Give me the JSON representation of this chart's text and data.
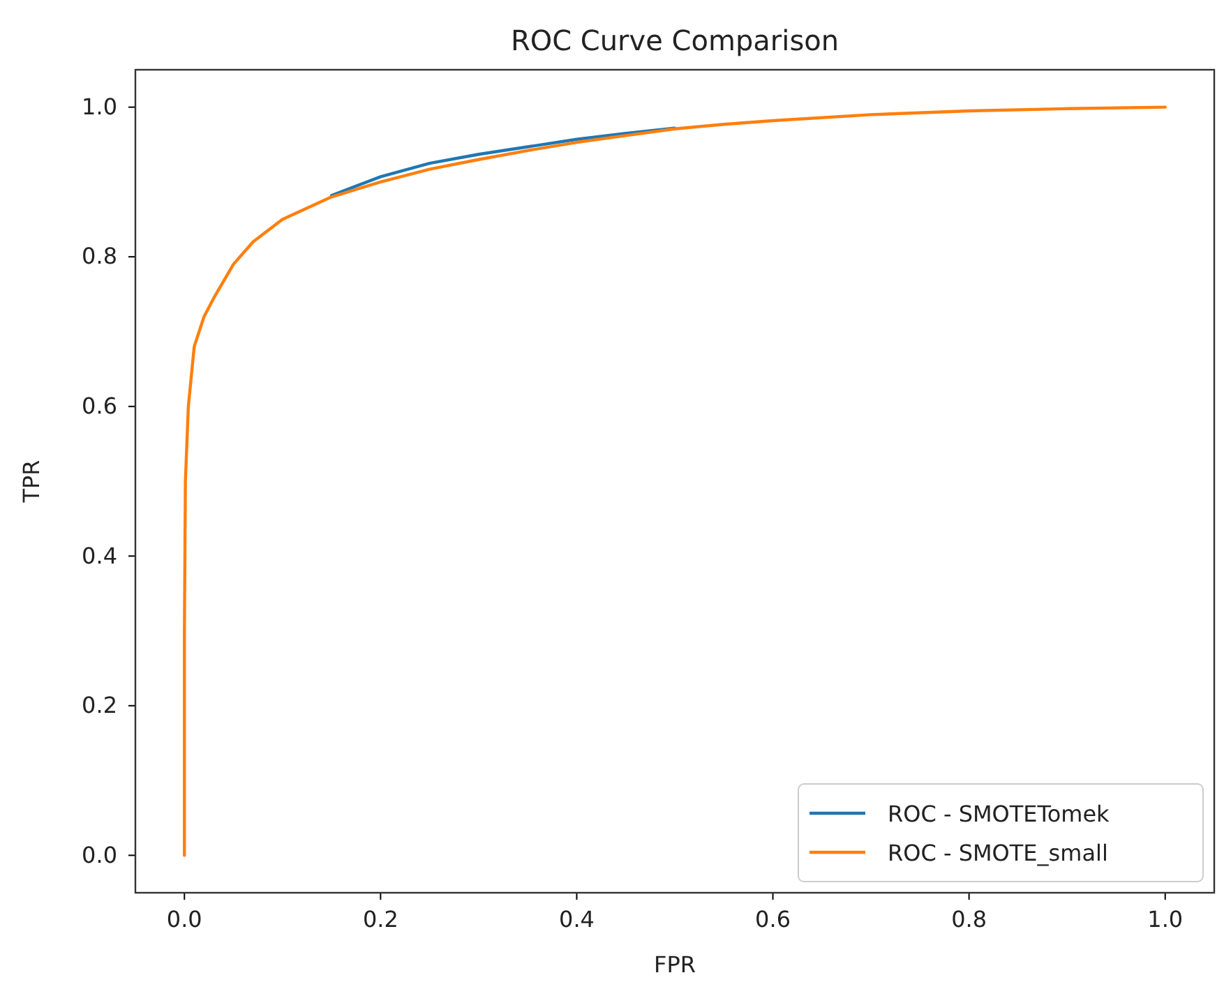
{
  "chart_data": {
    "type": "line",
    "title": "ROC Curve Comparison",
    "xlabel": "FPR",
    "ylabel": "TPR",
    "xlim": [
      -0.05,
      1.05
    ],
    "ylim": [
      -0.05,
      1.05
    ],
    "xticks": [
      {
        "value": 0,
        "label": "0.0"
      },
      0.2,
      0.4,
      0.6,
      0.8,
      {
        "value": 1,
        "label": "1.0"
      }
    ],
    "yticks": [
      {
        "value": 0,
        "label": "0.0"
      },
      0.2,
      0.4,
      0.6,
      0.8,
      {
        "value": 1,
        "label": "1.0"
      }
    ],
    "legend": "bottom right",
    "grid": false,
    "marker": "none",
    "line_style": "solid",
    "series": [
      {
        "name": "ROC - SMOTETomek",
        "color": "#1f77b4",
        "x": [
          0.15,
          0.2,
          0.25,
          0.3,
          0.35,
          0.4,
          0.45,
          0.5
        ],
        "values": [
          0.882,
          0.907,
          0.925,
          0.937,
          0.947,
          0.957,
          0.965,
          0.972
        ]
      },
      {
        "name": "ROC - SMOTE_small",
        "color": "#ff7f0e",
        "x": [
          0,
          0,
          0.001,
          0.004,
          0.01,
          0.02,
          0.03,
          0.05,
          0.07,
          0.1,
          0.15,
          0.2,
          0.25,
          0.3,
          0.35,
          0.4,
          0.45,
          0.5,
          0.55,
          0.6,
          0.7,
          0.8,
          0.9,
          1
        ],
        "values": [
          0,
          0.3,
          0.5,
          0.6,
          0.68,
          0.72,
          0.745,
          0.79,
          0.82,
          0.85,
          0.88,
          0.9,
          0.917,
          0.93,
          0.942,
          0.953,
          0.962,
          0.971,
          0.977,
          0.982,
          0.99,
          0.995,
          0.998,
          1
        ]
      }
    ]
  }
}
